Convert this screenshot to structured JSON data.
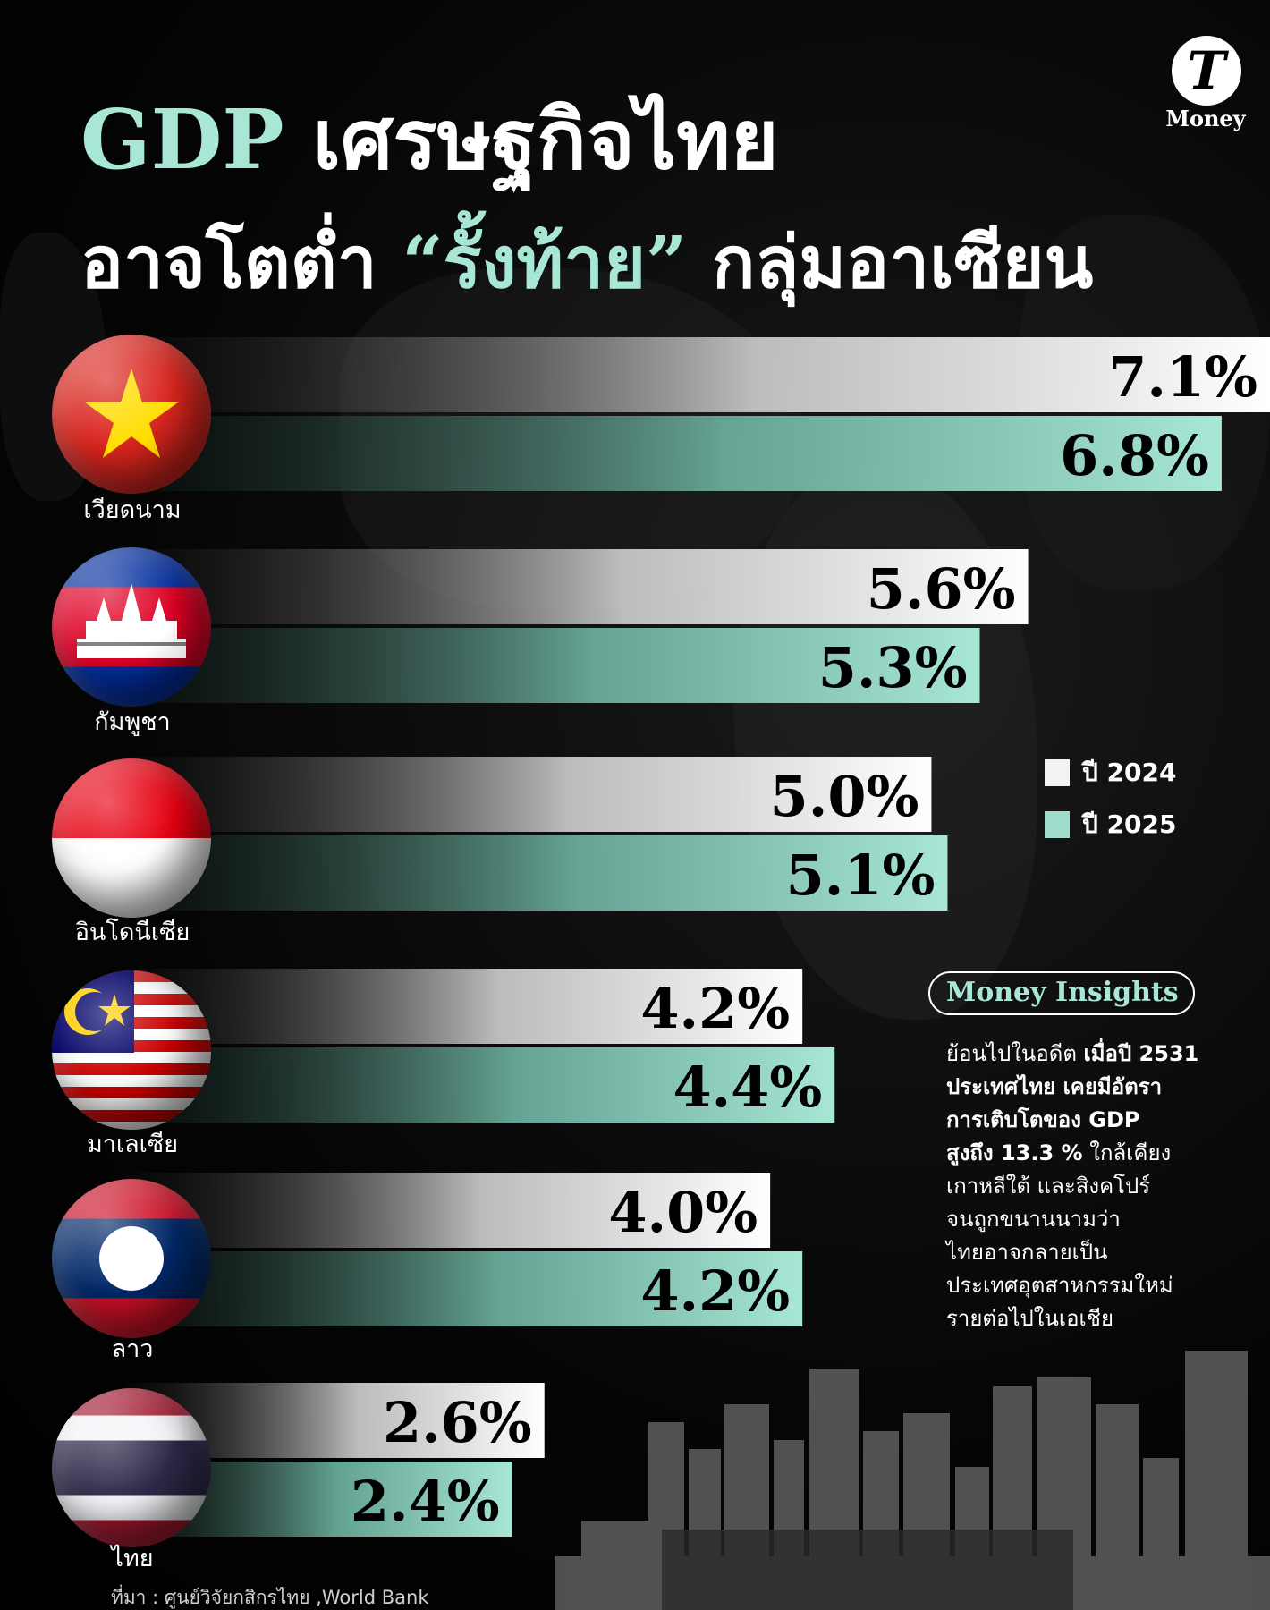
{
  "header": {
    "title_line1_highlight": "GDP",
    "title_line1_rest": "เศรษฐกิจไทย",
    "title_line2_part1": "อาจโตต่ำ",
    "title_line2_highlight": "“รั้งท้าย”",
    "title_line2_part2": "กลุ่มอาเซียน"
  },
  "logo": {
    "letter": "T",
    "word": "Money"
  },
  "colors": {
    "accent_mint": "#a8e6d6",
    "bar_2024": "#f2f2f2",
    "bar_2025": "#9fdccb",
    "background": "#000000"
  },
  "legend": {
    "items": [
      {
        "label": "ปี 2024",
        "color": "#f2f2f2"
      },
      {
        "label": "ปี 2025",
        "color": "#9fdccb"
      }
    ]
  },
  "chart_data": {
    "type": "bar",
    "orientation": "horizontal",
    "categories": [
      "เวียดนาม",
      "กัมพูชา",
      "อินโดนีเซีย",
      "มาเลเซีย",
      "ลาว",
      "ไทย"
    ],
    "flags": [
      "vietnam-flag",
      "cambodia-flag",
      "indonesia-flag",
      "malaysia-flag",
      "laos-flag",
      "thailand-flag"
    ],
    "series": [
      {
        "name": "ปี 2024",
        "values": [
          7.1,
          5.6,
          5.0,
          4.2,
          4.0,
          2.6
        ],
        "labels": [
          "7.1%",
          "5.6%",
          "5.0%",
          "4.2%",
          "4.0%",
          "2.6%"
        ],
        "color": "#f2f2f2"
      },
      {
        "name": "ปี 2025",
        "values": [
          6.8,
          5.3,
          5.1,
          4.4,
          4.2,
          2.4
        ],
        "labels": [
          "6.8%",
          "5.3%",
          "5.1%",
          "4.4%",
          "4.2%",
          "2.4%"
        ],
        "color": "#9fdccb"
      }
    ],
    "xlim": [
      0,
      7.1
    ],
    "grid": false,
    "legend_position": "right"
  },
  "insights": {
    "badge": "Money Insights",
    "lines": [
      {
        "normal": "ย้อนไปในอดีต ",
        "bold": "เมื่อปี 2531"
      },
      {
        "normal": "",
        "bold": "ประเทศไทย เคยมีอัตรา"
      },
      {
        "normal": "",
        "bold": "การเติบโตของ GDP"
      },
      {
        "normal": " ใกล้เคียง",
        "bold": "สูงถึง 13.3 %",
        "bold_first": true
      },
      {
        "normal": "เกาหลีใต้ และสิงคโปร์",
        "bold": ""
      },
      {
        "normal": "จนถูกขนานนามว่า",
        "bold": ""
      },
      {
        "normal": "ไทยอาจกลายเป็น",
        "bold": ""
      },
      {
        "normal": "ประเทศอุตสาหกรรมใหม่",
        "bold": ""
      },
      {
        "normal": "รายต่อไปในเอเชีย",
        "bold": ""
      }
    ]
  },
  "source": "ที่มา : ศูนย์วิจัยกสิกรไทย ,World Bank"
}
